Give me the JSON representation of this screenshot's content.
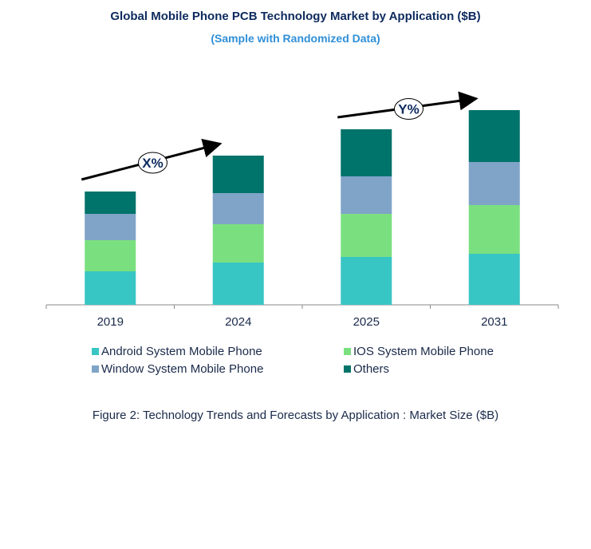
{
  "chart_data": {
    "type": "bar",
    "stacked": true,
    "title": "Global Mobile Phone PCB Technology Market by Application ($B)",
    "subtitle": "(Sample with Randomized Data)",
    "caption": "Figure 2: Technology  Trends  and Forecasts by Application : Market Size ($B)",
    "categories": [
      "2019",
      "2024",
      "2025",
      "2031"
    ],
    "series": [
      {
        "name": "Android System Mobile Phone",
        "color": "#38c6c4",
        "values": [
          4.2,
          5.3,
          6.0,
          6.4
        ]
      },
      {
        "name": "IOS System Mobile Phone",
        "color": "#7ae07f",
        "values": [
          3.9,
          4.8,
          5.4,
          6.1
        ]
      },
      {
        "name": "Window System Mobile Phone",
        "color": "#7fa4c8",
        "values": [
          3.3,
          3.9,
          4.7,
          5.4
        ]
      },
      {
        "name": "Others",
        "color": "#00736a",
        "values": [
          2.8,
          4.7,
          5.9,
          6.5
        ]
      }
    ],
    "annotations": [
      {
        "label": "X%",
        "from": "2019",
        "to": "2024"
      },
      {
        "label": "Y%",
        "from": "2025",
        "to": "2031"
      }
    ],
    "y_axis_visible": false,
    "grid": false,
    "legend_position": "bottom"
  }
}
